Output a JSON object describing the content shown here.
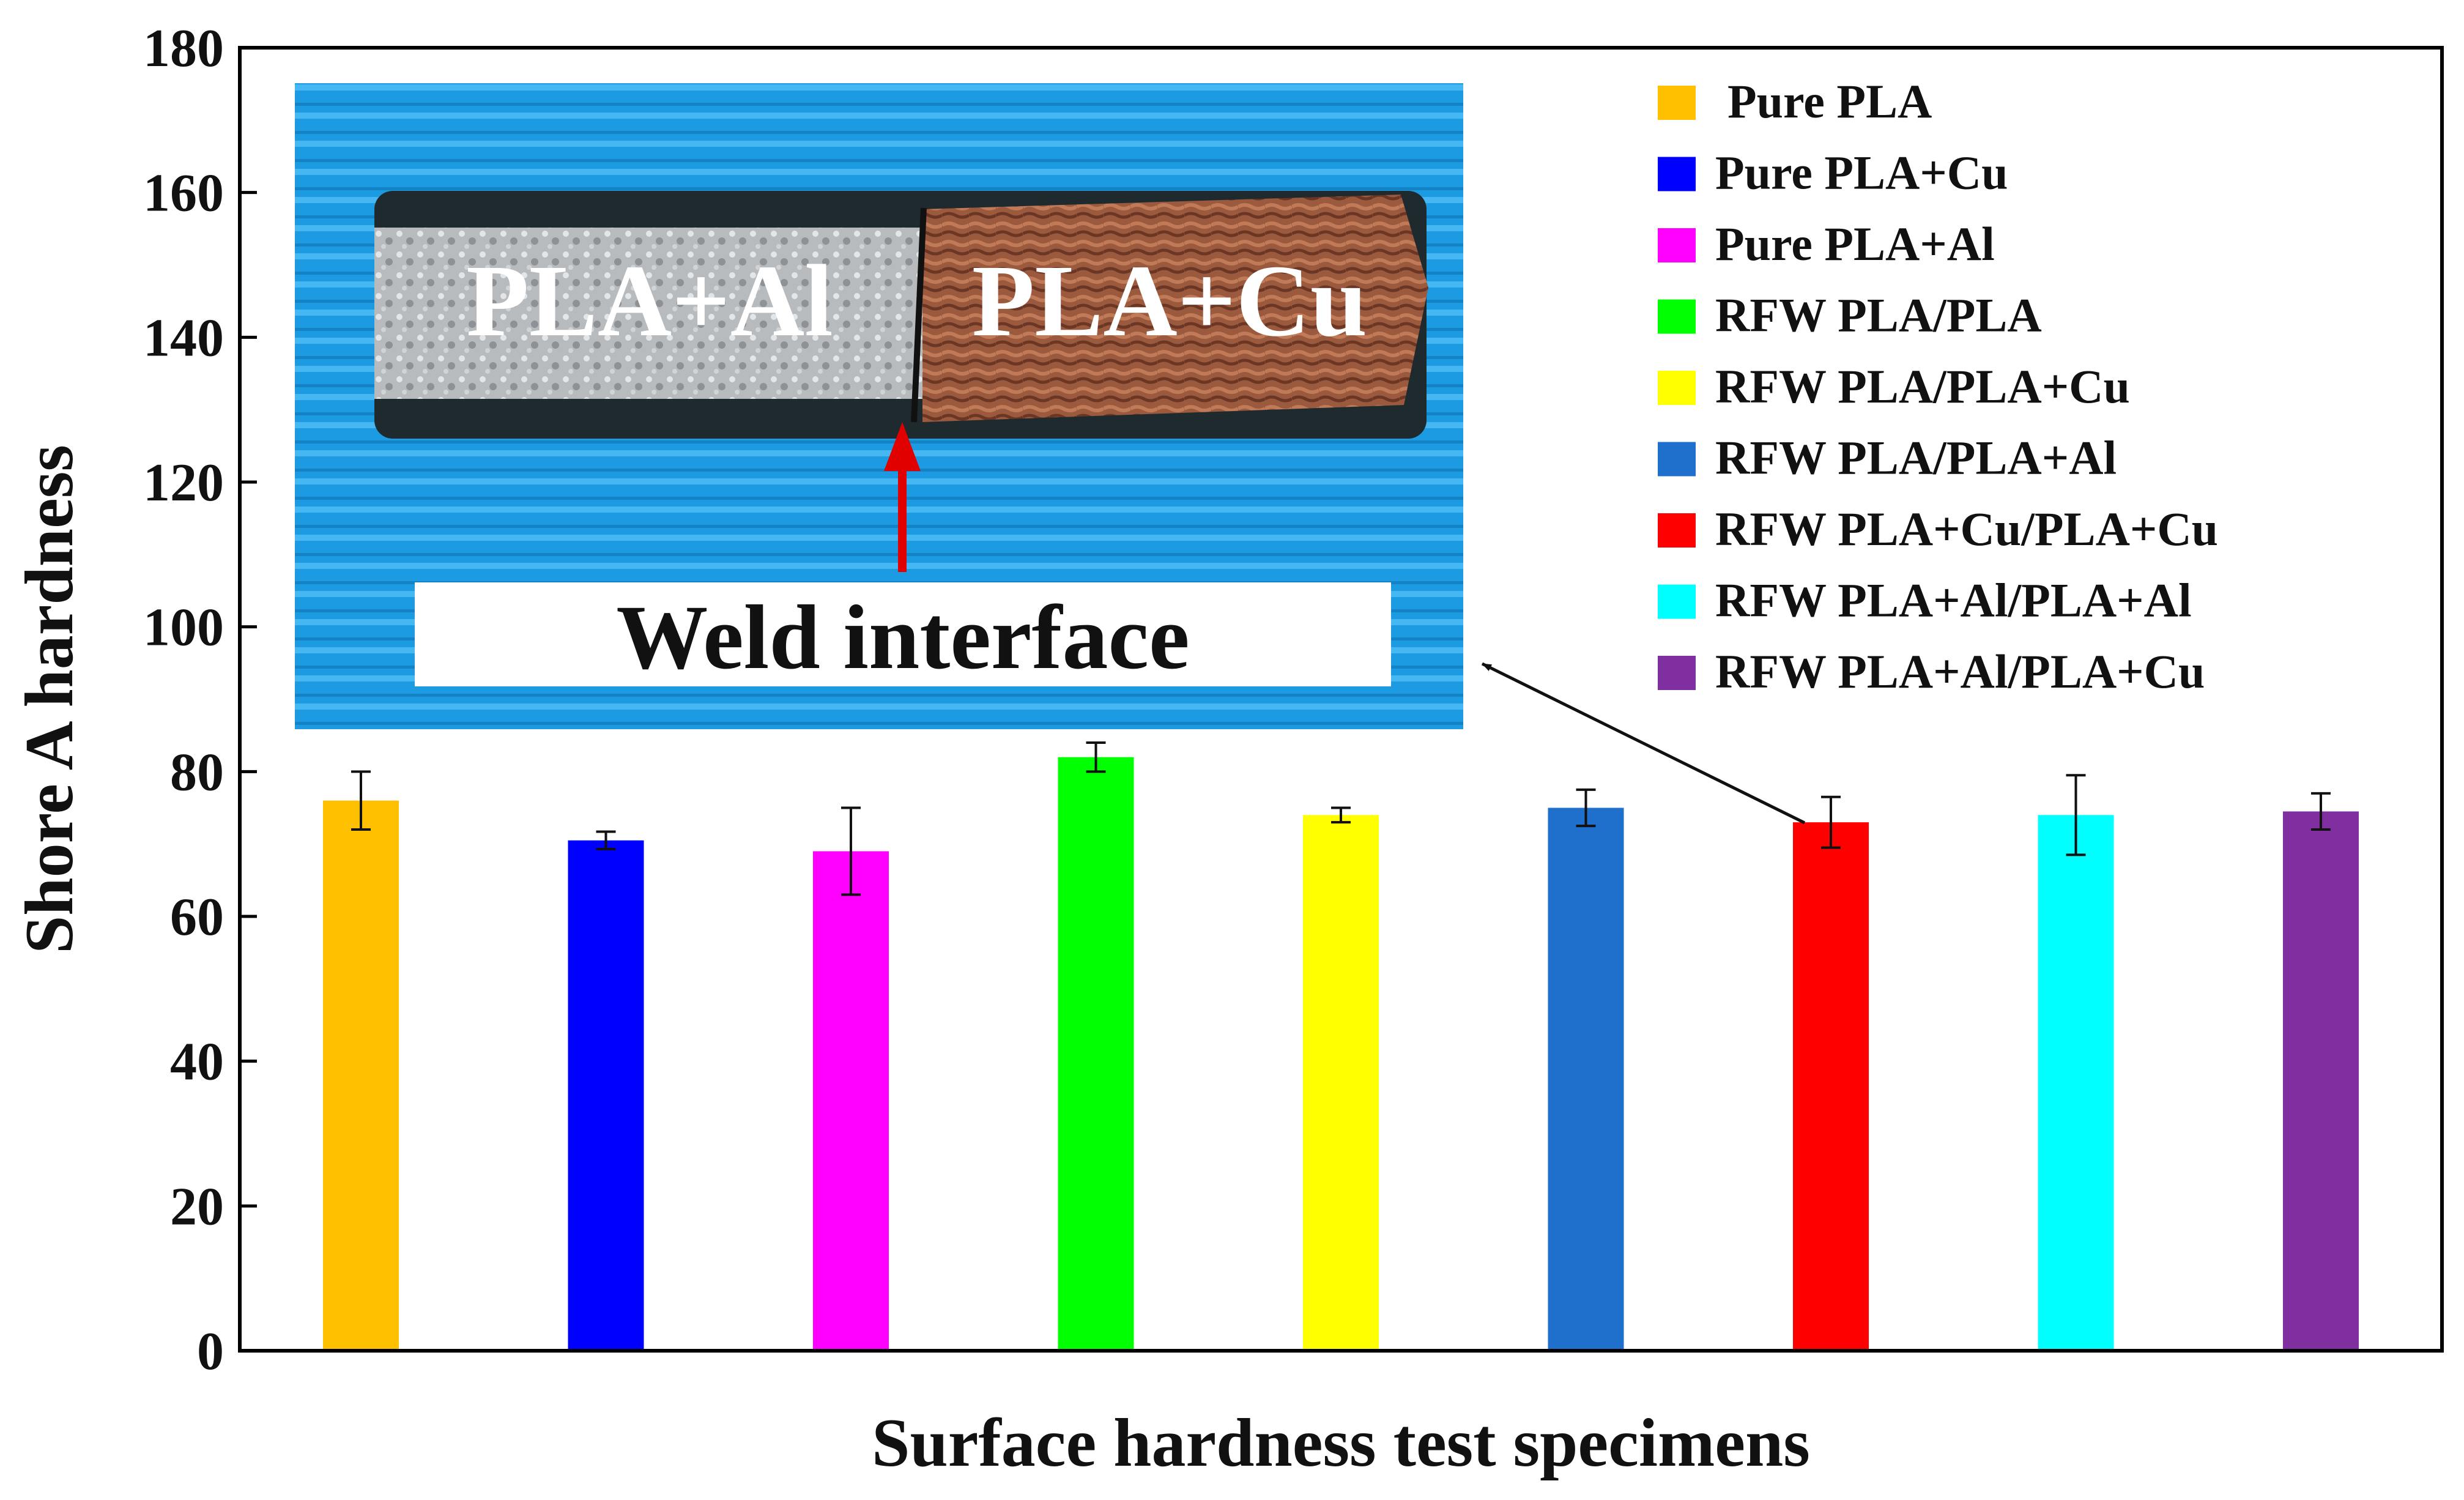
{
  "chart_data": {
    "type": "bar",
    "ylabel": "Shore A hardness",
    "xlabel": "Surface hardness test specimens",
    "ylim": [
      0,
      180
    ],
    "yticks": [
      0,
      20,
      40,
      60,
      80,
      100,
      120,
      140,
      160,
      180
    ],
    "grid": false,
    "legend_position": "top-right",
    "categories": [
      "Pure PLA",
      "Pure PLA+Cu",
      "Pure PLA+Al",
      "RFW PLA/PLA",
      "RFW PLA/PLA+Cu",
      "RFW PLA/PLA+Al",
      "RFW PLA+Cu/PLA+Cu",
      "RFW PLA+Al/PLA+Al",
      "RFW PLA+Al/PLA+Cu"
    ],
    "values": [
      76,
      70.5,
      69,
      82,
      74,
      75,
      73,
      74,
      74.5
    ],
    "errors": [
      4,
      1.2,
      6,
      2,
      1,
      2.5,
      3.5,
      5.5,
      2.5
    ],
    "colors": [
      "#FFC000",
      "#0000FF",
      "#FF00FF",
      "#00FF00",
      "#FFFF00",
      "#1F6FCC",
      "#FF0000",
      "#00FFFF",
      "#7F2FA0"
    ],
    "inset": {
      "left_label": "PLA+Al",
      "right_label": "PLA+Cu",
      "caption": "Weld interface",
      "arrow_target": "RFW PLA+Cu/PLA+Cu"
    }
  }
}
